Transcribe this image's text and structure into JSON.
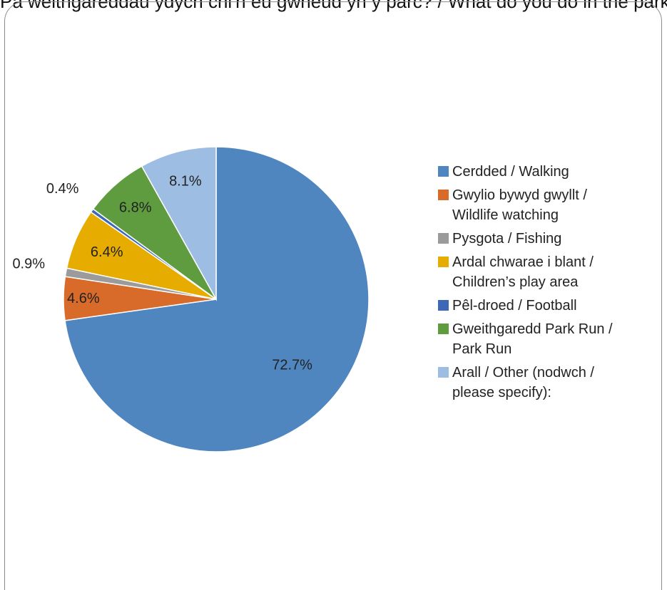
{
  "header": {
    "clipped_text": "Pa weithgareddau ydych chi'n eu gwneud yn y parc? / What do you do in the park?"
  },
  "chart_data": {
    "type": "pie",
    "title": "",
    "categories": [
      "Cerdded / Walking",
      "Gwylio bywyd gwyllt / Wildlife watching",
      "Pysgota / Fishing",
      "Ardal chwarae i blant / Children’s play area",
      "Pêl-droed / Football",
      "Gweithgaredd Park Run / Park Run",
      "Arall / Other (nodwch / please specify):"
    ],
    "values": [
      72.7,
      4.6,
      0.9,
      6.4,
      0.4,
      6.8,
      8.1
    ],
    "data_labels": [
      "72.7%",
      "4.6%",
      "0.9%",
      "6.4%",
      "0.4%",
      "6.8%",
      "8.1%"
    ],
    "colors": [
      "#4f86c0",
      "#d86b29",
      "#9b9b9b",
      "#e6ac00",
      "#3c68b5",
      "#5e9c3f",
      "#9ebde2"
    ],
    "legend_position": "right",
    "start_angle": "top, clockwise"
  },
  "legend": {
    "items": [
      {
        "line1": "Cerdded / Walking",
        "line2": ""
      },
      {
        "line1": "Gwylio bywyd gwyllt /",
        "line2": "Wildlife watching"
      },
      {
        "line1": "Pysgota / Fishing",
        "line2": ""
      },
      {
        "line1": "Ardal chwarae i blant /",
        "line2": "Children’s play area"
      },
      {
        "line1": "Pêl-droed / Football",
        "line2": ""
      },
      {
        "line1": "Gweithgaredd Park Run /",
        "line2": "Park Run"
      },
      {
        "line1": "Arall / Other (nodwch /",
        "line2": "please specify):"
      }
    ]
  }
}
